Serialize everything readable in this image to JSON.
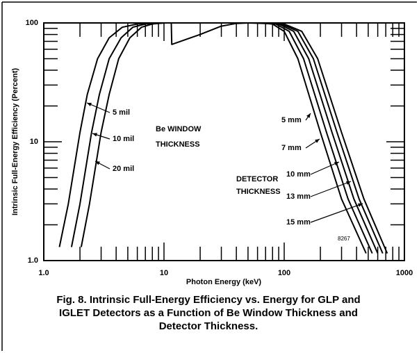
{
  "chart_data": {
    "type": "line",
    "xlabel": "Photon Energy (keV)",
    "ylabel": "Intrinsic Full-Energy Efficiency (Percent)",
    "log_x": true,
    "log_y": true,
    "xlim": [
      1,
      1000
    ],
    "ylim": [
      1,
      100
    ],
    "xticks": [
      {
        "value": 1,
        "label": "1.0"
      },
      10,
      100,
      1000
    ],
    "yticks": [
      {
        "value": 1,
        "label": "1.0"
      },
      10,
      100
    ],
    "xminorticks": [
      2,
      3,
      4,
      5,
      6,
      7,
      8,
      9,
      20,
      30,
      40,
      50,
      60,
      70,
      80,
      90,
      200,
      300,
      400,
      500,
      600,
      700,
      800,
      900
    ],
    "yminorticks": [
      2,
      3,
      4,
      5,
      6,
      7,
      8,
      9,
      20,
      30,
      40,
      50,
      60,
      70,
      80,
      90
    ],
    "color": "#000000",
    "series": [
      {
        "name": "5 mil",
        "x": [
          1.35,
          1.6,
          2.0,
          2.3,
          2.8,
          3.5,
          4.5,
          6,
          8,
          10
        ],
        "values": [
          1.3,
          3,
          12,
          25,
          50,
          75,
          92,
          98,
          100,
          100
        ]
      },
      {
        "name": "10 mil",
        "x": [
          1.7,
          2.0,
          2.5,
          2.9,
          3.5,
          4.4,
          5.5,
          7,
          9,
          10
        ],
        "values": [
          1.3,
          3,
          12,
          25,
          50,
          75,
          92,
          98,
          99.5,
          100
        ]
      },
      {
        "name": "20 mil",
        "x": [
          2.05,
          2.4,
          3.0,
          3.5,
          4.2,
          5.2,
          6.5,
          8,
          10
        ],
        "values": [
          1.3,
          3,
          12,
          25,
          50,
          75,
          92,
          98,
          100
        ]
      },
      {
        "x": [
          10,
          11.5,
          11.6,
          20,
          30,
          40,
          50,
          70
        ],
        "values": [
          100,
          100,
          66,
          80,
          94,
          99,
          100,
          99
        ]
      },
      {
        "name": "5 mm",
        "x": [
          70,
          80,
          100,
          130,
          200,
          300,
          480
        ],
        "values": [
          99,
          98,
          85,
          50,
          12,
          3.3,
          1.15
        ]
      },
      {
        "name": "7 mm",
        "x": [
          70,
          85,
          110,
          145,
          225,
          340,
          540
        ],
        "values": [
          99,
          98,
          85,
          50,
          12,
          3.3,
          1.15
        ]
      },
      {
        "name": "10 mm",
        "x": [
          70,
          90,
          120,
          160,
          250,
          380,
          600
        ],
        "values": [
          99,
          98,
          85,
          50,
          12,
          3.3,
          1.15
        ]
      },
      {
        "name": "13 mm",
        "x": [
          70,
          95,
          130,
          175,
          275,
          420,
          660
        ],
        "values": [
          99,
          98,
          85,
          50,
          12,
          3.3,
          1.15
        ]
      },
      {
        "name": "15 mm",
        "x": [
          70,
          100,
          140,
          190,
          300,
          460,
          720
        ],
        "values": [
          99,
          98,
          85,
          50,
          12,
          3.3,
          1.15
        ]
      }
    ],
    "annotations": [
      "Be WINDOW",
      "THICKNESS",
      "DETECTOR",
      "THICKNESS",
      "8267"
    ],
    "caption": [
      "Fig. 8.  Intrinsic Full-Energy Efficiency vs. Energy for GLP and",
      "IGLET Detectors as a Function of Be Window Thickness and",
      "Detector Thickness."
    ]
  }
}
